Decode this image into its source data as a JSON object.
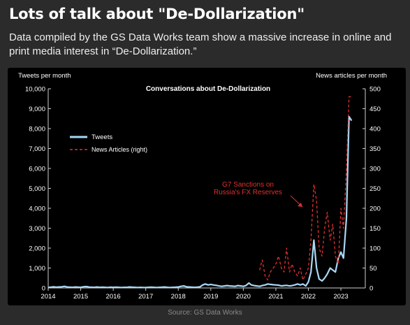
{
  "header": {
    "title": "Lots of talk about \"De-Dollarization\"",
    "subtitle": "Data compiled by the GS Data Works team show a massive increase in online and print media interest in “De-Dollarization.”"
  },
  "footer": {
    "source": "Source: GS Data Works"
  },
  "colors": {
    "background": "#2b2b2b",
    "panel": "#000000",
    "tweets": "#a9d8f5",
    "news": "#e03030",
    "annotation": "#e03030"
  },
  "chart_data": {
    "type": "line",
    "title": "Conversations about De-Dollarization",
    "ylabel_left": "Tweets per month",
    "ylabel_right": "News articles per month",
    "x_ticks": [
      "2014",
      "2015",
      "2016",
      "2017",
      "2018",
      "2019",
      "2020",
      "2021",
      "2022",
      "2023"
    ],
    "y_left_ticks": [
      "0",
      "1,000",
      "2,000",
      "3,000",
      "4,000",
      "5,000",
      "6,000",
      "7,000",
      "8,000",
      "9,000",
      "10,000"
    ],
    "y_right_ticks": [
      "0",
      "50",
      "100",
      "150",
      "200",
      "250",
      "300",
      "350",
      "400",
      "450",
      "500"
    ],
    "xlim": [
      2014.0,
      2023.75
    ],
    "ylim_left": [
      0,
      10000
    ],
    "ylim_right": [
      0,
      500
    ],
    "legend": {
      "placement": "upper-left",
      "entries": [
        "Tweets",
        "News Articles (right)"
      ]
    },
    "annotation": {
      "text_lines": [
        "G7 Sanctions on",
        "Russia's FX Reserves"
      ],
      "points_to_year": 2021.9
    },
    "series": [
      {
        "name": "Tweets",
        "axis": "left",
        "style": "solid",
        "x": [
          2014.0,
          2014.08,
          2014.17,
          2014.25,
          2014.33,
          2014.42,
          2014.5,
          2014.58,
          2014.67,
          2014.75,
          2014.83,
          2014.92,
          2015.0,
          2015.08,
          2015.17,
          2015.25,
          2015.33,
          2015.42,
          2015.5,
          2015.58,
          2015.67,
          2015.75,
          2015.83,
          2015.92,
          2016.0,
          2016.08,
          2016.17,
          2016.25,
          2016.33,
          2016.42,
          2016.5,
          2016.58,
          2016.67,
          2016.75,
          2016.83,
          2016.92,
          2017.0,
          2017.08,
          2017.17,
          2017.25,
          2017.33,
          2017.42,
          2017.5,
          2017.58,
          2017.67,
          2017.75,
          2017.83,
          2017.92,
          2018.0,
          2018.08,
          2018.17,
          2018.25,
          2018.33,
          2018.42,
          2018.5,
          2018.58,
          2018.67,
          2018.75,
          2018.83,
          2018.92,
          2019.0,
          2019.08,
          2019.17,
          2019.25,
          2019.33,
          2019.42,
          2019.5,
          2019.58,
          2019.67,
          2019.75,
          2019.83,
          2019.92,
          2020.0,
          2020.08,
          2020.17,
          2020.25,
          2020.33,
          2020.42,
          2020.5,
          2020.58,
          2020.67,
          2020.75,
          2020.83,
          2020.92,
          2021.0,
          2021.08,
          2021.17,
          2021.25,
          2021.33,
          2021.42,
          2021.5,
          2021.58,
          2021.67,
          2021.75,
          2021.83,
          2021.92,
          2022.0,
          2022.08,
          2022.17,
          2022.25,
          2022.33,
          2022.42,
          2022.5,
          2022.58,
          2022.67,
          2022.75,
          2022.83,
          2022.92,
          2023.0,
          2023.08,
          2023.17,
          2023.25,
          2023.33
        ],
        "values": [
          20,
          40,
          60,
          40,
          50,
          60,
          80,
          50,
          40,
          30,
          50,
          40,
          30,
          60,
          70,
          50,
          40,
          30,
          50,
          30,
          40,
          30,
          20,
          40,
          30,
          40,
          30,
          20,
          30,
          30,
          50,
          40,
          30,
          20,
          30,
          20,
          20,
          30,
          40,
          30,
          20,
          30,
          40,
          50,
          30,
          20,
          30,
          40,
          50,
          80,
          100,
          60,
          50,
          40,
          30,
          40,
          60,
          150,
          200,
          150,
          180,
          150,
          130,
          100,
          80,
          100,
          120,
          100,
          90,
          80,
          120,
          100,
          80,
          120,
          250,
          150,
          120,
          100,
          80,
          120,
          150,
          200,
          180,
          160,
          150,
          140,
          100,
          120,
          130,
          100,
          120,
          150,
          200,
          150,
          200,
          100,
          300,
          800,
          2400,
          1000,
          450,
          350,
          500,
          700,
          1000,
          900,
          800,
          1500,
          1800,
          1500,
          3500,
          8600,
          8400
        ]
      },
      {
        "name": "News Articles (right)",
        "axis": "right",
        "style": "dashed",
        "x": [
          2020.5,
          2020.58,
          2020.67,
          2020.75,
          2020.83,
          2020.92,
          2021.0,
          2021.08,
          2021.17,
          2021.25,
          2021.33,
          2021.42,
          2021.5,
          2021.58,
          2021.67,
          2021.75,
          2021.83,
          2021.92,
          2022.0,
          2022.08,
          2022.17,
          2022.25,
          2022.33,
          2022.42,
          2022.5,
          2022.58,
          2022.67,
          2022.75,
          2022.83,
          2022.92,
          2023.0,
          2023.08,
          2023.17,
          2023.25,
          2023.33
        ],
        "values": [
          45,
          70,
          30,
          20,
          40,
          50,
          60,
          80,
          50,
          40,
          100,
          40,
          60,
          40,
          30,
          50,
          20,
          35,
          50,
          120,
          260,
          220,
          100,
          80,
          150,
          190,
          120,
          160,
          80,
          60,
          200,
          150,
          300,
          480,
          480
        ]
      }
    ]
  }
}
